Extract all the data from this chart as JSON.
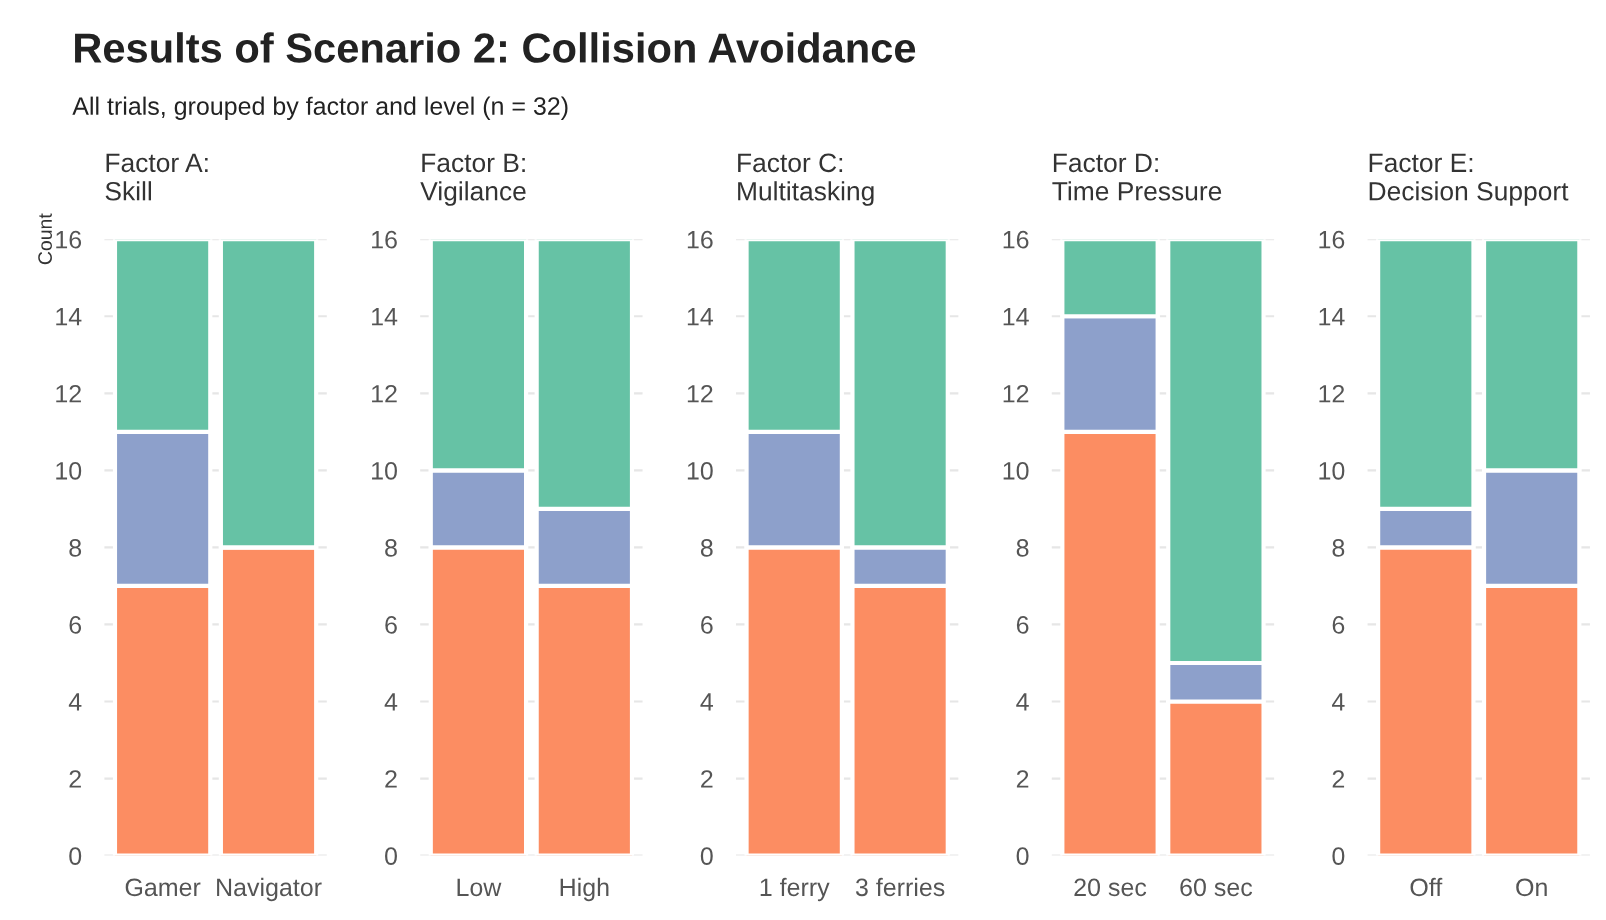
{
  "chart_data": [
    {
      "type": "bar",
      "title": "Factor A:\nSkill",
      "ylabel": "Count",
      "annotations": [
        "Results of Scenario 2: Collision Avoidance",
        "All trials, grouped by factor and level (n = 32)"
      ],
      "categories": [
        "Gamer",
        "Navigator"
      ],
      "stacked": true,
      "ylim": [
        0,
        16
      ],
      "yticks": [
        0,
        2,
        4,
        6,
        8,
        10,
        12,
        14,
        16
      ],
      "grid": "y",
      "series": [
        {
          "color": "#fc8d62",
          "values": [
            7,
            8
          ]
        },
        {
          "color": "#8da0cb",
          "values": [
            4,
            0
          ]
        },
        {
          "color": "#66c2a5",
          "values": [
            5,
            8
          ]
        }
      ]
    },
    {
      "type": "bar",
      "title": "Factor B:\nVigilance",
      "categories": [
        "Low",
        "High"
      ],
      "stacked": true,
      "ylim": [
        0,
        16
      ],
      "yticks": [
        0,
        2,
        4,
        6,
        8,
        10,
        12,
        14,
        16
      ],
      "grid": "y",
      "series": [
        {
          "color": "#fc8d62",
          "values": [
            8,
            7
          ]
        },
        {
          "color": "#8da0cb",
          "values": [
            2,
            2
          ]
        },
        {
          "color": "#66c2a5",
          "values": [
            6,
            7
          ]
        }
      ]
    },
    {
      "type": "bar",
      "title": "Factor C:\nMultitasking",
      "categories": [
        "1 ferry",
        "3 ferries"
      ],
      "stacked": true,
      "ylim": [
        0,
        16
      ],
      "yticks": [
        0,
        2,
        4,
        6,
        8,
        10,
        12,
        14,
        16
      ],
      "grid": "y",
      "series": [
        {
          "color": "#fc8d62",
          "values": [
            8,
            7
          ]
        },
        {
          "color": "#8da0cb",
          "values": [
            3,
            1
          ]
        },
        {
          "color": "#66c2a5",
          "values": [
            5,
            8
          ]
        }
      ]
    },
    {
      "type": "bar",
      "title": "Factor D:\nTime Pressure",
      "categories": [
        "20 sec",
        "60 sec"
      ],
      "stacked": true,
      "ylim": [
        0,
        16
      ],
      "yticks": [
        0,
        2,
        4,
        6,
        8,
        10,
        12,
        14,
        16
      ],
      "grid": "y",
      "series": [
        {
          "color": "#fc8d62",
          "values": [
            11,
            4
          ]
        },
        {
          "color": "#8da0cb",
          "values": [
            3,
            1
          ]
        },
        {
          "color": "#66c2a5",
          "values": [
            2,
            11
          ]
        }
      ]
    },
    {
      "type": "bar",
      "title": "Factor E:\nDecision Support",
      "categories": [
        "Off",
        "On"
      ],
      "stacked": true,
      "ylim": [
        0,
        16
      ],
      "yticks": [
        0,
        2,
        4,
        6,
        8,
        10,
        12,
        14,
        16
      ],
      "grid": "y",
      "series": [
        {
          "color": "#fc8d62",
          "values": [
            8,
            7
          ]
        },
        {
          "color": "#8da0cb",
          "values": [
            1,
            3
          ]
        },
        {
          "color": "#66c2a5",
          "values": [
            7,
            6
          ]
        }
      ]
    }
  ]
}
